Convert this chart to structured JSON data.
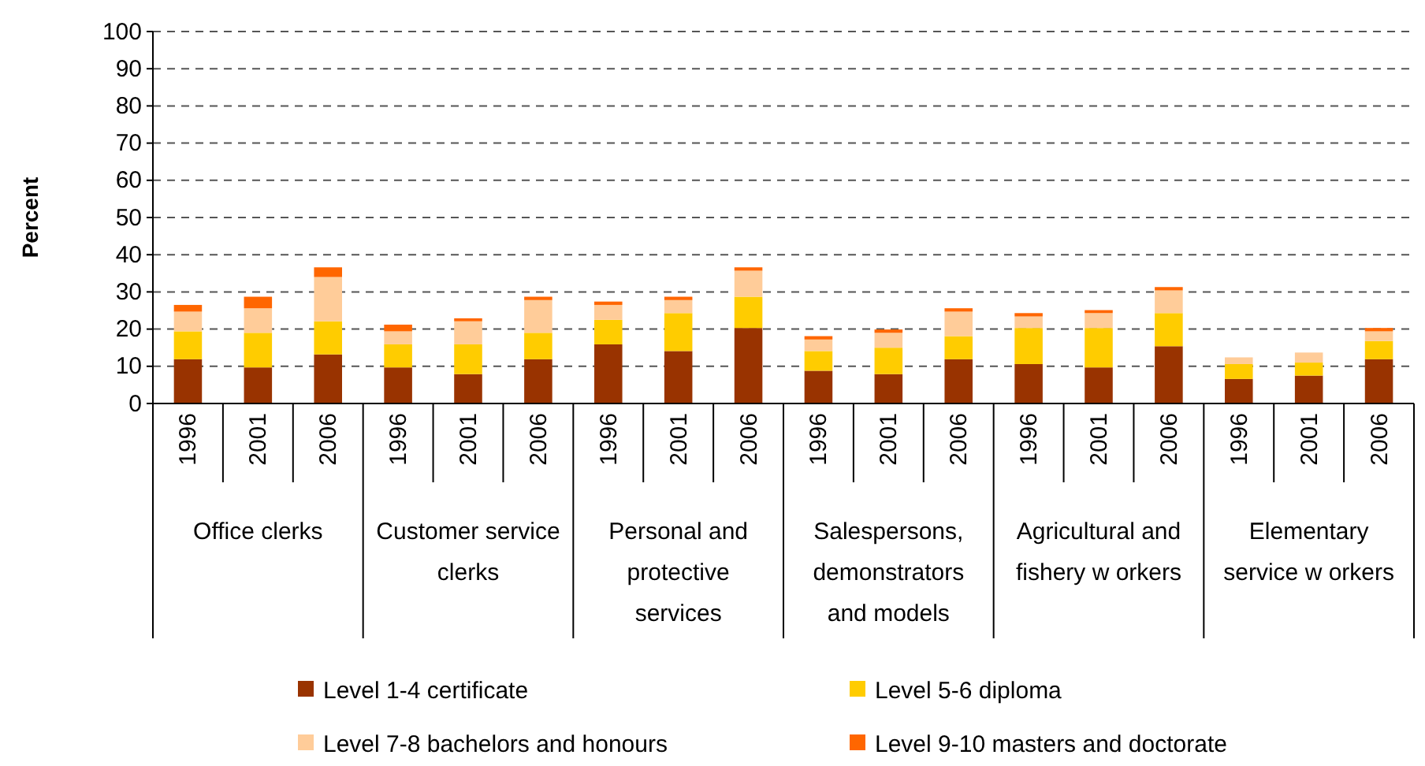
{
  "chart_data": {
    "type": "bar",
    "stacked": true,
    "ylabel": "Percent",
    "categories": [
      "1996",
      "2001",
      "2006",
      "1996",
      "2001",
      "2006",
      "1996",
      "2001",
      "2006",
      "1996",
      "2001",
      "2006",
      "1996",
      "2001",
      "2006",
      "1996",
      "2001",
      "2006"
    ],
    "annotations": [
      "Office clerks",
      "Customer service clerks",
      "Personal and protective services",
      "Salespersons, demonstrators and models",
      "Agricultural and fishery w orkers",
      "Elementary service w orkers"
    ],
    "series": [
      {
        "name": "Level 1-4 certificate",
        "color": "#993300",
        "values": [
          11.9,
          9.7,
          13.2,
          9.7,
          7.9,
          11.9,
          15.9,
          14.1,
          20.3,
          8.8,
          7.9,
          11.9,
          10.6,
          9.7,
          15.4,
          6.6,
          7.5,
          11.9
        ]
      },
      {
        "name": "Level 5-6 diploma",
        "color": "#ffcc00",
        "values": [
          7.5,
          9.3,
          8.9,
          6.2,
          8.0,
          7.1,
          6.6,
          10.2,
          8.4,
          5.3,
          7.1,
          6.2,
          9.7,
          10.6,
          8.9,
          4.0,
          3.5,
          4.9
        ]
      },
      {
        "name": "Level 7-8 bachelors and honours",
        "color": "#ffcc99",
        "values": [
          5.3,
          6.6,
          11.9,
          3.5,
          6.2,
          8.8,
          4.0,
          3.5,
          7.0,
          3.1,
          4.0,
          6.6,
          3.1,
          4.0,
          6.1,
          1.8,
          2.7,
          2.6
        ]
      },
      {
        "name": "Level 9-10 masters and doctorate",
        "color": "#ff6600",
        "values": [
          1.8,
          3.1,
          2.6,
          1.8,
          0.8,
          0.9,
          0.9,
          0.9,
          0.9,
          0.9,
          0.9,
          0.9,
          0.9,
          0.8,
          0.9,
          0,
          0,
          0.9
        ]
      }
    ],
    "ylim": [
      0,
      100
    ],
    "yticks": [
      0,
      10,
      20,
      30,
      40,
      50,
      60,
      70,
      80,
      90,
      100
    ],
    "grid": "y",
    "legend": "bottom"
  }
}
